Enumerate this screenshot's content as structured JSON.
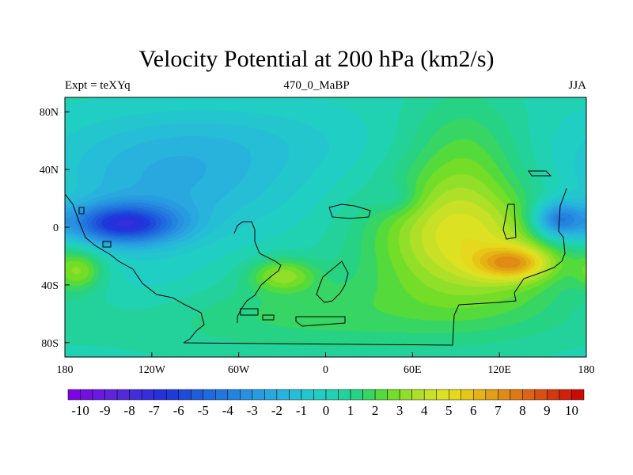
{
  "chart_data": {
    "type": "heatmap",
    "title": "Velocity Potential at 200 hPa (km2/s)",
    "left_string": "Expt = teXYq",
    "center_string": "470_0_MaBP",
    "right_string": "JJA",
    "x_ticks": [
      {
        "value": -180,
        "label": "180"
      },
      {
        "value": -120,
        "label": "120W"
      },
      {
        "value": -60,
        "label": "60W"
      },
      {
        "value": 0,
        "label": "0"
      },
      {
        "value": 60,
        "label": "60E"
      },
      {
        "value": 120,
        "label": "120E"
      },
      {
        "value": 180,
        "label": "180"
      }
    ],
    "y_ticks": [
      {
        "value": 80,
        "label": "80N"
      },
      {
        "value": 40,
        "label": "40N"
      },
      {
        "value": 0,
        "label": "0"
      },
      {
        "value": -40,
        "label": "40S"
      },
      {
        "value": -80,
        "label": "80S"
      }
    ],
    "xlim": [
      -180,
      180
    ],
    "ylim": [
      -90,
      90
    ],
    "colorbar": {
      "min": -10.5,
      "max": 10.5,
      "step": 0.5,
      "labels": [
        "-10",
        "-9",
        "-8",
        "-7",
        "-6",
        "-5",
        "-4",
        "-3",
        "-2",
        "-1",
        "0",
        "1",
        "2",
        "3",
        "4",
        "5",
        "6",
        "7",
        "8",
        "9",
        "10"
      ]
    },
    "field_features": [
      {
        "lon": -140,
        "lat": 2,
        "value": -10.0,
        "desc": "minimum"
      },
      {
        "lon": 130,
        "lat": -25,
        "value": 8.5,
        "desc": "maximum"
      },
      {
        "lon": -30,
        "lat": -33,
        "value": 3.0,
        "desc": "local high"
      },
      {
        "lon": 160,
        "lat": 5,
        "value": -3.0,
        "desc": "local low"
      }
    ]
  }
}
